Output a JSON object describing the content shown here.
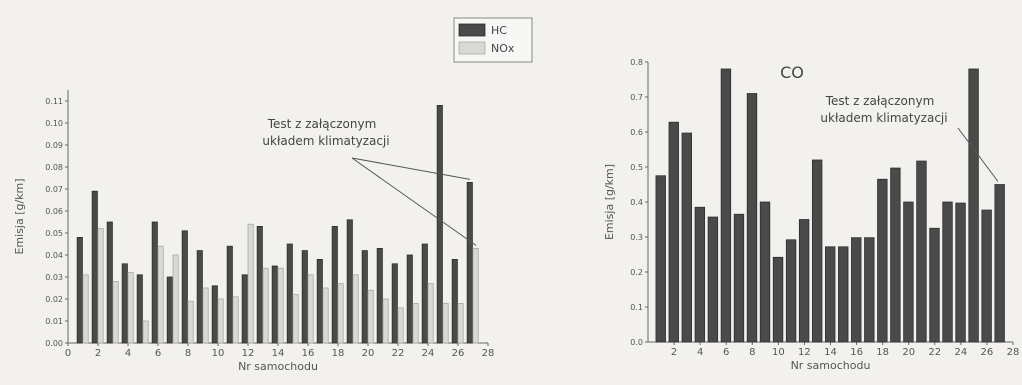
{
  "chart_data": [
    {
      "type": "bar",
      "title": "",
      "xlabel": "Nr samochodu",
      "ylabel": "Emisja [g/km]",
      "xlim": [
        0,
        28
      ],
      "ylim": [
        0,
        0.115
      ],
      "x_ticks": [
        "0",
        "2",
        "4",
        "6",
        "8",
        "10",
        "12",
        "14",
        "16",
        "18",
        "20",
        "22",
        "24",
        "26",
        "28"
      ],
      "y_ticks": [
        "0.00",
        "0.01",
        "0.02",
        "0.03",
        "0.04",
        "0.05",
        "0.06",
        "0.07",
        "0.08",
        "0.09",
        "0.10",
        "0.11"
      ],
      "legend": {
        "position": "top-center"
      },
      "annotation": {
        "lines": [
          "Test z załączonym",
          "układem klimatyzacji"
        ],
        "target_x": 27
      },
      "categories": [
        1,
        2,
        3,
        4,
        5,
        6,
        7,
        8,
        9,
        10,
        11,
        12,
        13,
        14,
        15,
        16,
        17,
        18,
        19,
        20,
        21,
        22,
        23,
        24,
        25,
        26,
        27
      ],
      "series": [
        {
          "name": "HC",
          "color": "#4a4a4a",
          "values": [
            0.048,
            0.069,
            0.055,
            0.036,
            0.031,
            0.055,
            0.03,
            0.051,
            0.042,
            0.026,
            0.044,
            0.031,
            0.053,
            0.035,
            0.045,
            0.042,
            0.038,
            0.053,
            0.056,
            0.042,
            0.043,
            0.036,
            0.04,
            0.045,
            0.108,
            0.038,
            0.073
          ]
        },
        {
          "name": "NOx",
          "color": "#d8d8d4",
          "values": [
            0.031,
            0.052,
            0.028,
            0.032,
            0.01,
            0.044,
            0.04,
            0.019,
            0.025,
            0.02,
            0.021,
            0.054,
            0.034,
            0.034,
            0.022,
            0.031,
            0.025,
            0.027,
            0.031,
            0.024,
            0.02,
            0.016,
            0.018,
            0.027,
            0.018,
            0.018,
            0.043
          ]
        }
      ]
    },
    {
      "type": "bar",
      "title": "CO",
      "xlabel": "Nr samochodu",
      "ylabel": "Emisja [g/km]",
      "xlim": [
        0,
        28
      ],
      "ylim": [
        0,
        0.8
      ],
      "x_ticks": [
        "2",
        "4",
        "6",
        "8",
        "10",
        "12",
        "14",
        "16",
        "18",
        "20",
        "22",
        "24",
        "26",
        "28"
      ],
      "y_ticks": [
        "0.0",
        "0.1",
        "0.2",
        "0.3",
        "0.4",
        "0.5",
        "0.6",
        "0.7",
        "0.8"
      ],
      "annotation": {
        "lines": [
          "Test z załączonym",
          "układem klimatyzacji"
        ],
        "target_x": 27
      },
      "categories": [
        1,
        2,
        3,
        4,
        5,
        6,
        7,
        8,
        9,
        10,
        11,
        12,
        13,
        14,
        15,
        16,
        17,
        18,
        19,
        20,
        21,
        22,
        23,
        24,
        25,
        26,
        27
      ],
      "series": [
        {
          "name": "CO",
          "color": "#4a4a4a",
          "values": [
            0.475,
            0.628,
            0.597,
            0.385,
            0.357,
            0.78,
            0.365,
            0.71,
            0.4,
            0.242,
            0.292,
            0.35,
            0.52,
            0.272,
            0.272,
            0.298,
            0.298,
            0.465,
            0.497,
            0.4,
            0.517,
            0.325,
            0.4,
            0.397,
            0.78,
            0.377,
            0.45
          ]
        }
      ]
    }
  ]
}
